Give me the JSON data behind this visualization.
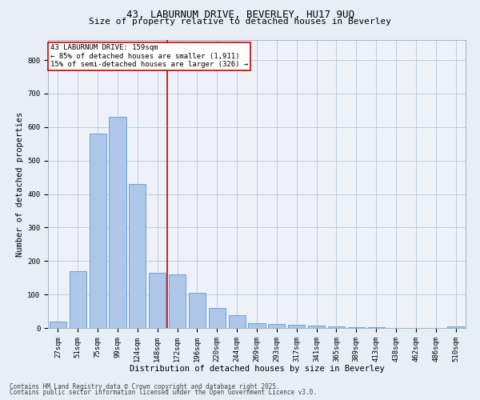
{
  "title1": "43, LABURNUM DRIVE, BEVERLEY, HU17 9UQ",
  "title2": "Size of property relative to detached houses in Beverley",
  "xlabel": "Distribution of detached houses by size in Beverley",
  "ylabel": "Number of detached properties",
  "categories": [
    "27sqm",
    "51sqm",
    "75sqm",
    "99sqm",
    "124sqm",
    "148sqm",
    "172sqm",
    "196sqm",
    "220sqm",
    "244sqm",
    "269sqm",
    "293sqm",
    "317sqm",
    "341sqm",
    "365sqm",
    "389sqm",
    "413sqm",
    "438sqm",
    "462sqm",
    "486sqm",
    "510sqm"
  ],
  "values": [
    20,
    170,
    580,
    630,
    430,
    165,
    160,
    105,
    60,
    38,
    15,
    13,
    10,
    8,
    5,
    3,
    2,
    1,
    0,
    0,
    5
  ],
  "bar_color": "#aec6e8",
  "bar_edge_color": "#5b9bd5",
  "vline_color": "#cc0000",
  "vline_pos": 5.5,
  "annotation_text": "43 LABURNUM DRIVE: 159sqm\n← 85% of detached houses are smaller (1,911)\n15% of semi-detached houses are larger (326) →",
  "annotation_box_color": "#ffffff",
  "annotation_box_edge": "#cc0000",
  "ylim": [
    0,
    860
  ],
  "yticks": [
    0,
    100,
    200,
    300,
    400,
    500,
    600,
    700,
    800
  ],
  "footer1": "Contains HM Land Registry data © Crown copyright and database right 2025.",
  "footer2": "Contains public sector information licensed under the Open Government Licence v3.0.",
  "bg_color": "#e8eef5",
  "plot_bg_color": "#eef2f8",
  "title_fontsize": 9,
  "subtitle_fontsize": 8,
  "axis_label_fontsize": 7.5,
  "tick_fontsize": 6.5,
  "annotation_fontsize": 6.5,
  "footer_fontsize": 5.5
}
